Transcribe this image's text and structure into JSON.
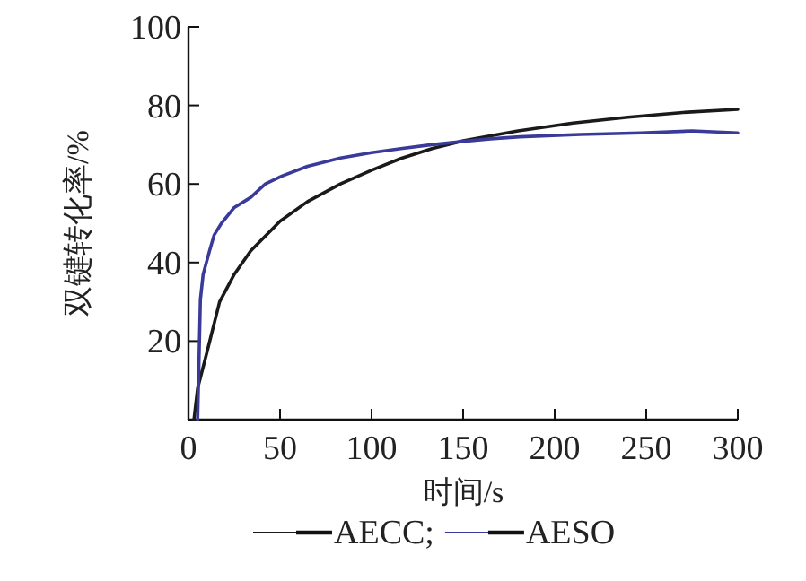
{
  "chart_data": {
    "type": "line",
    "xlabel": "时间/s",
    "ylabel": "双键转化率/%",
    "xlim": [
      0,
      300
    ],
    "ylim": [
      0,
      100
    ],
    "xticks": [
      0,
      50,
      100,
      150,
      200,
      250,
      300
    ],
    "yticks": [
      20,
      40,
      60,
      80,
      100
    ],
    "grid": false,
    "legend": "bottom",
    "marker": "none",
    "line_style": "solid",
    "series": [
      {
        "name": "AECC;",
        "color": "#1a1a1a",
        "x": [
          3,
          5,
          10,
          17,
          25,
          34,
          50,
          65,
          83,
          100,
          116,
          133,
          150,
          180,
          210,
          240,
          270,
          300
        ],
        "values": [
          0,
          8,
          17,
          30,
          37,
          43,
          50.5,
          55.5,
          60,
          63.5,
          66.5,
          69,
          71,
          73.5,
          75.5,
          77,
          78.2,
          79
        ]
      },
      {
        "name": "AESO",
        "color": "#3a3a9a",
        "x": [
          5,
          6.5,
          8,
          11.5,
          14,
          18,
          25,
          34,
          42,
          51,
          65,
          83,
          100,
          116,
          133,
          149,
          165,
          181,
          214,
          247,
          275,
          300
        ],
        "values": [
          0,
          30.6,
          37,
          43,
          47,
          50,
          54,
          56.6,
          60,
          62,
          64.5,
          66.6,
          68,
          69,
          70,
          70.8,
          71.5,
          72,
          72.6,
          73,
          73.5,
          73
        ]
      }
    ]
  }
}
